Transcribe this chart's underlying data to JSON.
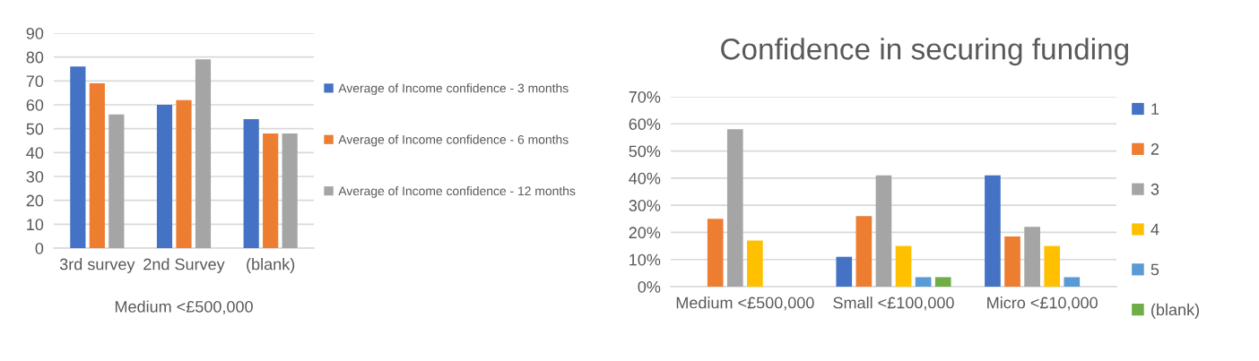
{
  "chart_data": [
    {
      "type": "bar",
      "categories": [
        "3rd survey",
        "2nd Survey",
        "(blank)"
      ],
      "xlabel": "Medium <£500,000",
      "series": [
        {
          "name": "Average of Income confidence - 3 months",
          "color": "#4472c4",
          "values": [
            76,
            60,
            54
          ]
        },
        {
          "name": "Average of Income confidence - 6 months",
          "color": "#ed7d31",
          "values": [
            69,
            62,
            48
          ]
        },
        {
          "name": "Average of Income confidence - 12 months",
          "color": "#a5a5a5",
          "values": [
            56,
            79,
            48
          ]
        }
      ],
      "ylim": [
        0,
        90
      ],
      "yticks": [
        0,
        10,
        20,
        30,
        40,
        50,
        60,
        70,
        80,
        90
      ],
      "grid": "y",
      "legend": "right"
    },
    {
      "type": "bar",
      "title": "Confidence in securing funding",
      "categories": [
        "Medium <£500,000",
        "Small <£100,000",
        "Micro <£10,000"
      ],
      "series": [
        {
          "name": "1",
          "color": "#4472c4",
          "values": [
            null,
            11,
            41
          ]
        },
        {
          "name": "2",
          "color": "#ed7d31",
          "values": [
            25,
            26,
            18.5
          ]
        },
        {
          "name": "3",
          "color": "#a5a5a5",
          "values": [
            58,
            41,
            22
          ]
        },
        {
          "name": "4",
          "color": "#ffc000",
          "values": [
            17,
            15,
            15
          ]
        },
        {
          "name": "5",
          "color": "#5b9bd5",
          "values": [
            null,
            3.5,
            3.5
          ]
        },
        {
          "name": "(blank)",
          "color": "#70ad47",
          "values": [
            null,
            3.5,
            null
          ]
        }
      ],
      "ylim": [
        0,
        70
      ],
      "yticks": [
        {
          "value": 0,
          "label": "0%"
        },
        {
          "value": 10,
          "label": "10%"
        },
        {
          "value": 20,
          "label": "20%"
        },
        {
          "value": 30,
          "label": "30%"
        },
        {
          "value": 40,
          "label": "40%"
        },
        {
          "value": 50,
          "label": "50%"
        },
        {
          "value": 60,
          "label": "60%"
        },
        {
          "value": 70,
          "label": "70%"
        }
      ],
      "grid": "y",
      "legend": "right"
    }
  ]
}
